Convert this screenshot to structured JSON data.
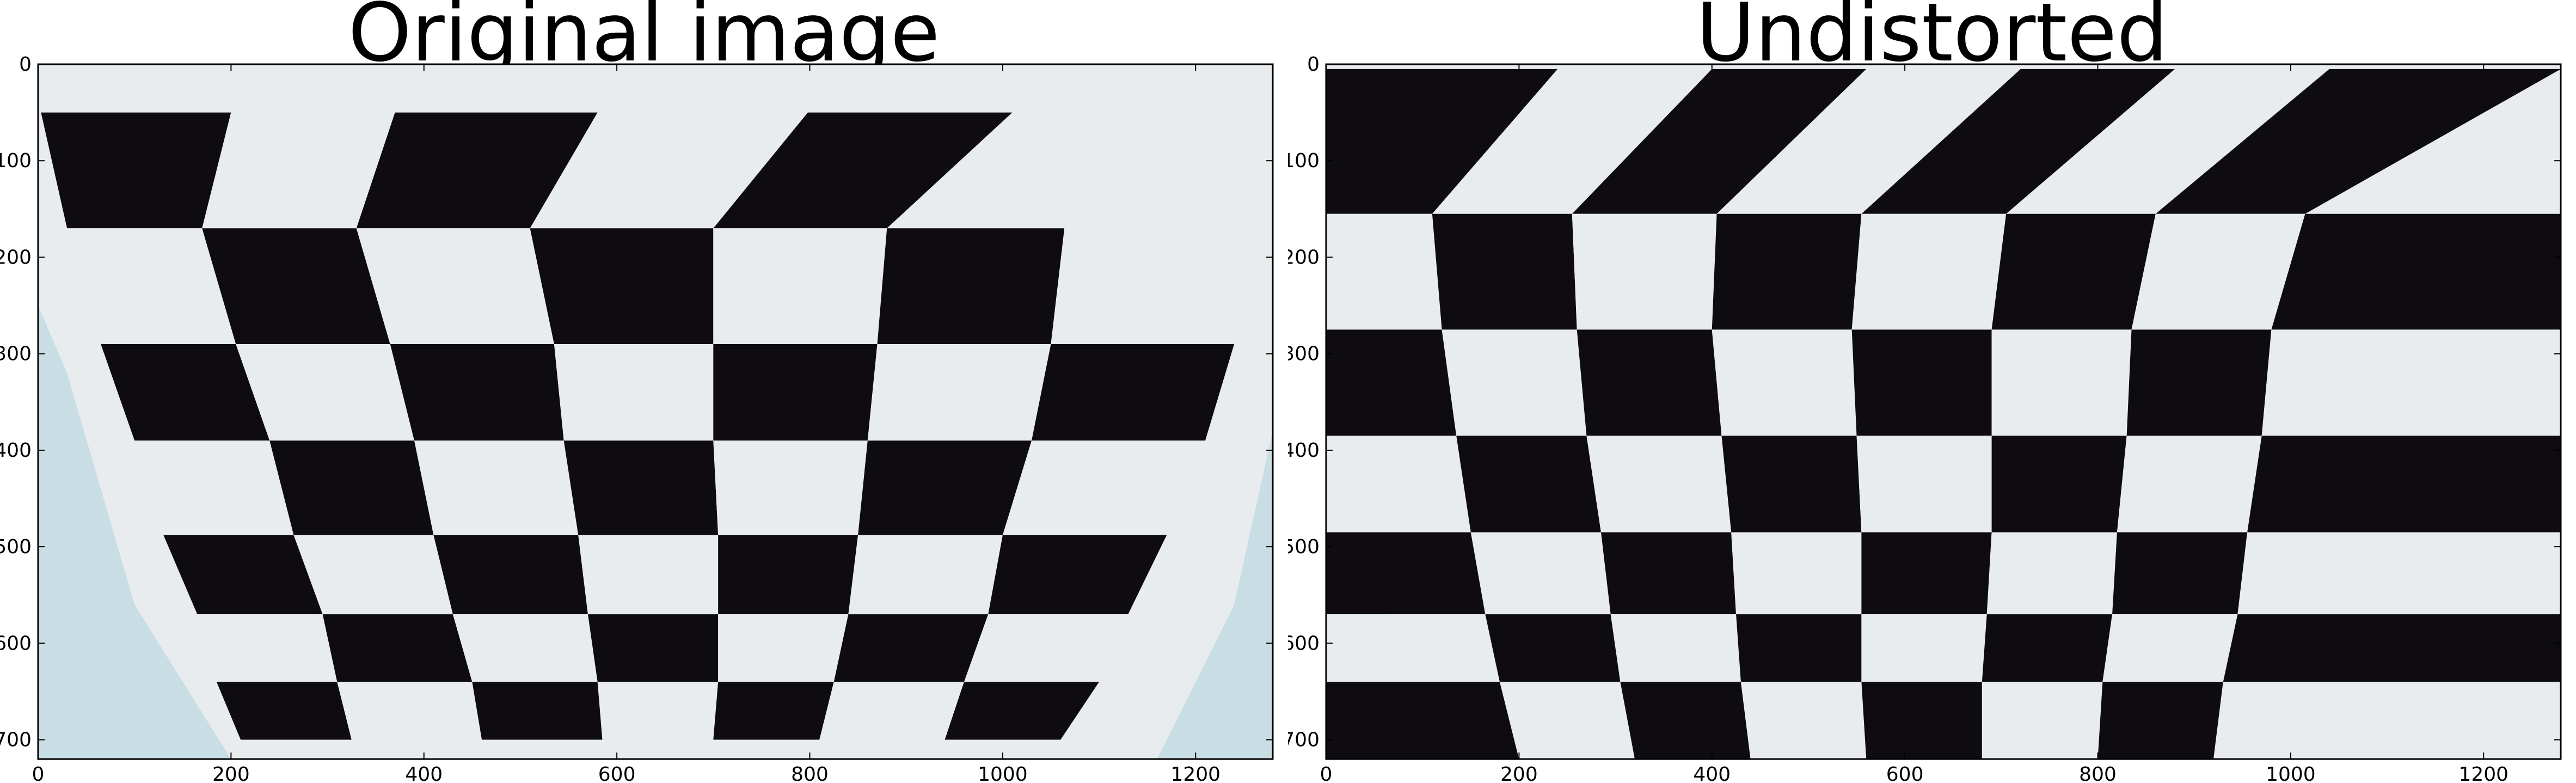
{
  "colors": {
    "background": "#ffffff",
    "board_light": "#e8ecee",
    "board_dark": "#0e0c10",
    "wall_blue": "#c9dde4",
    "axis": "#000000"
  },
  "panels": [
    {
      "title": "Original image",
      "image": "checkerboard-photo-distorted",
      "x_ticks": [
        "0",
        "200",
        "400",
        "600",
        "800",
        "1000",
        "1200"
      ],
      "y_ticks": [
        "0",
        "100",
        "200",
        "300",
        "400",
        "500",
        "600",
        "700"
      ],
      "x_range": [
        0,
        1280
      ],
      "y_range": [
        0,
        720
      ]
    },
    {
      "title": "Undistorted",
      "image": "checkerboard-photo-undistorted",
      "x_ticks": [
        "0",
        "200",
        "400",
        "600",
        "800",
        "1000",
        "1200"
      ],
      "y_ticks": [
        "0",
        "100",
        "200",
        "300",
        "400",
        "500",
        "600",
        "700"
      ],
      "x_range": [
        0,
        1280
      ],
      "y_range": [
        0,
        720
      ]
    }
  ]
}
